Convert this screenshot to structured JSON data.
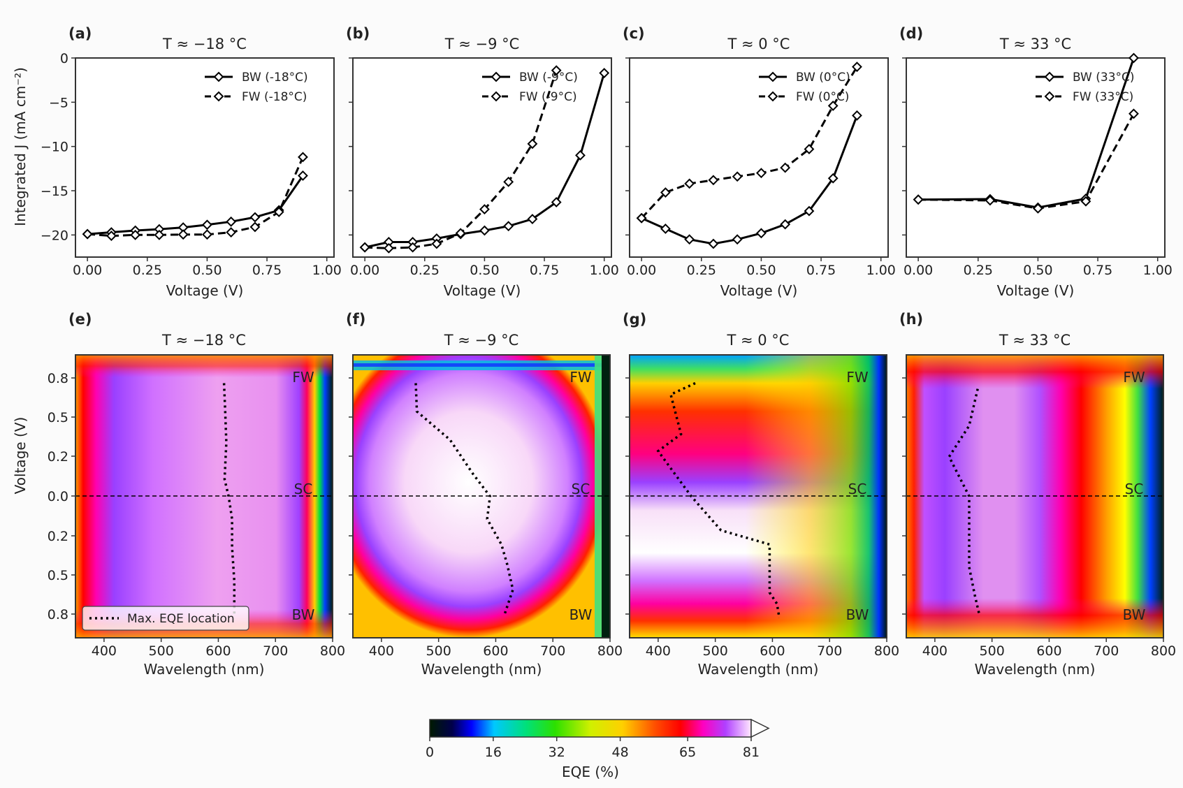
{
  "colors": {
    "axis": "#333333",
    "line": "#000000",
    "background": "#fbfbfb"
  },
  "jv_ylabel": "Integrated J (mA cm⁻²)",
  "jv_xlabel": "Voltage (V)",
  "map_ylabel": "Voltage (V)",
  "map_xlabel": "Wavelength (nm)",
  "colorbar": {
    "label": "EQE (%)",
    "ticks": [
      "0",
      "16",
      "32",
      "48",
      "65",
      "81"
    ],
    "min": 0,
    "max": 81
  },
  "map_annotations": {
    "fw": "FW",
    "sc": "SC",
    "bw": "BW"
  },
  "max_eqe_legend": "Max. EQE location",
  "jv_yticks": [
    "0",
    "−5",
    "−10",
    "−15",
    "−20"
  ],
  "jv_xticks": [
    "0.00",
    "0.25",
    "0.50",
    "0.75",
    "1.00"
  ],
  "map_yticks": [
    "0.8",
    "0.5",
    "0.2",
    "0.0",
    "0.2",
    "0.5",
    "0.8"
  ],
  "map_xticks": [
    "400",
    "500",
    "600",
    "700",
    "800"
  ],
  "chart_data": [
    {
      "type": "line",
      "panel": "(a)",
      "title": "T ≈ −18 °C",
      "xlabel": "Voltage (V)",
      "ylabel": "Integrated J (mA cm⁻²)",
      "xlim": [
        -0.05,
        1.03
      ],
      "ylim": [
        -22.5,
        0
      ],
      "series": [
        {
          "name": "BW (-18°C)",
          "style": "solid",
          "x": [
            0,
            0.1,
            0.2,
            0.3,
            0.4,
            0.5,
            0.6,
            0.7,
            0.8,
            0.9
          ],
          "y": [
            -19.9,
            -19.7,
            -19.5,
            -19.35,
            -19.15,
            -18.85,
            -18.5,
            -18.0,
            -17.2,
            -13.3
          ]
        },
        {
          "name": "FW (-18°C)",
          "style": "dashed",
          "x": [
            0,
            0.1,
            0.2,
            0.3,
            0.4,
            0.5,
            0.6,
            0.7,
            0.8,
            0.9
          ],
          "y": [
            -19.9,
            -20.1,
            -20.0,
            -20.0,
            -19.95,
            -19.95,
            -19.7,
            -19.1,
            -17.4,
            -11.2
          ]
        }
      ]
    },
    {
      "type": "line",
      "panel": "(b)",
      "title": "T ≈ −9 °C",
      "xlabel": "Voltage (V)",
      "ylabel": "",
      "xlim": [
        -0.05,
        1.03
      ],
      "ylim": [
        -22.5,
        0
      ],
      "series": [
        {
          "name": "BW (-9°C)",
          "style": "solid",
          "x": [
            0,
            0.1,
            0.2,
            0.3,
            0.4,
            0.5,
            0.6,
            0.7,
            0.8,
            0.9,
            1.0
          ],
          "y": [
            -21.4,
            -20.8,
            -20.8,
            -20.4,
            -19.9,
            -19.5,
            -19.0,
            -18.2,
            -16.3,
            -11.0,
            -1.7
          ]
        },
        {
          "name": "FW (-9°C)",
          "style": "dashed",
          "x": [
            0,
            0.1,
            0.2,
            0.3,
            0.4,
            0.5,
            0.6,
            0.7,
            0.8
          ],
          "y": [
            -21.4,
            -21.5,
            -21.4,
            -21.0,
            -19.8,
            -17.1,
            -14.0,
            -9.7,
            -1.4
          ]
        }
      ]
    },
    {
      "type": "line",
      "panel": "(c)",
      "title": "T ≈ 0 °C",
      "xlabel": "Voltage (V)",
      "ylabel": "",
      "xlim": [
        -0.05,
        1.03
      ],
      "ylim": [
        -22.5,
        0
      ],
      "series": [
        {
          "name": "BW (0°C)",
          "style": "solid",
          "x": [
            0,
            0.1,
            0.2,
            0.3,
            0.4,
            0.5,
            0.6,
            0.7,
            0.8,
            0.9
          ],
          "y": [
            -18.1,
            -19.3,
            -20.5,
            -21.0,
            -20.5,
            -19.8,
            -18.8,
            -17.3,
            -13.6,
            -6.5
          ]
        },
        {
          "name": "FW (0°C)",
          "style": "dashed",
          "x": [
            0,
            0.1,
            0.2,
            0.3,
            0.4,
            0.5,
            0.6,
            0.7,
            0.8,
            0.9
          ],
          "y": [
            -18.1,
            -15.2,
            -14.2,
            -13.8,
            -13.4,
            -13.0,
            -12.4,
            -10.3,
            -5.4,
            -1.0
          ]
        }
      ]
    },
    {
      "type": "line",
      "panel": "(d)",
      "title": "T ≈ 33 °C",
      "xlabel": "Voltage (V)",
      "ylabel": "",
      "xlim": [
        -0.05,
        1.03
      ],
      "ylim": [
        -22.5,
        0
      ],
      "series": [
        {
          "name": "BW (33°C)",
          "style": "solid",
          "x": [
            0,
            0.3,
            0.5,
            0.7,
            0.9
          ],
          "y": [
            -16.0,
            -15.95,
            -16.9,
            -15.9,
            0.0
          ]
        },
        {
          "name": "FW (33°C)",
          "style": "dashed",
          "x": [
            0,
            0.3,
            0.5,
            0.7,
            0.9
          ],
          "y": [
            -16.0,
            -16.1,
            -17.0,
            -16.2,
            -6.3
          ]
        }
      ]
    },
    {
      "type": "heatmap",
      "panel": "(e)",
      "title": "T ≈ −18 °C",
      "xlabel": "Wavelength (nm)",
      "ylabel": "Voltage (V)",
      "xlim": [
        350,
        800
      ],
      "colorbar_range": [
        0,
        81
      ],
      "max_eqe_path": {
        "wavelength": [
          610,
          612,
          614,
          611,
          618,
          624,
          624,
          628,
          628
        ],
        "sweep_position": [
          0.1,
          0.2,
          0.31,
          0.44,
          0.5,
          0.58,
          0.68,
          0.8,
          0.92
        ]
      }
    },
    {
      "type": "heatmap",
      "panel": "(f)",
      "title": "T ≈ −9 °C",
      "xlabel": "Wavelength (nm)",
      "ylabel": "",
      "xlim": [
        350,
        800
      ],
      "colorbar_range": [
        0,
        81
      ],
      "max_eqe_path": {
        "wavelength": [
          460,
          462,
          520,
          560,
          590,
          585,
          610,
          620,
          630,
          615
        ],
        "sweep_position": [
          0.1,
          0.2,
          0.3,
          0.42,
          0.5,
          0.58,
          0.67,
          0.74,
          0.83,
          0.92
        ]
      }
    },
    {
      "type": "heatmap",
      "panel": "(g)",
      "title": "T ≈ 0 °C",
      "xlabel": "Wavelength (nm)",
      "ylabel": "",
      "xlim": [
        350,
        800
      ],
      "colorbar_range": [
        0,
        81
      ],
      "max_eqe_path": {
        "wavelength": [
          465,
          422,
          440,
          400,
          458,
          510,
          595,
          595,
          608,
          612
        ],
        "sweep_position": [
          0.1,
          0.14,
          0.28,
          0.34,
          0.5,
          0.62,
          0.67,
          0.84,
          0.88,
          0.93
        ]
      }
    },
    {
      "type": "heatmap",
      "panel": "(h)",
      "title": "T ≈ 33 °C",
      "xlabel": "Wavelength (nm)",
      "ylabel": "",
      "xlim": [
        350,
        800
      ],
      "colorbar_range": [
        0,
        81
      ],
      "max_eqe_path": {
        "wavelength": [
          475,
          460,
          425,
          460,
          460,
          460,
          470,
          478
        ],
        "sweep_position": [
          0.12,
          0.25,
          0.36,
          0.5,
          0.62,
          0.75,
          0.85,
          0.92
        ]
      }
    }
  ]
}
